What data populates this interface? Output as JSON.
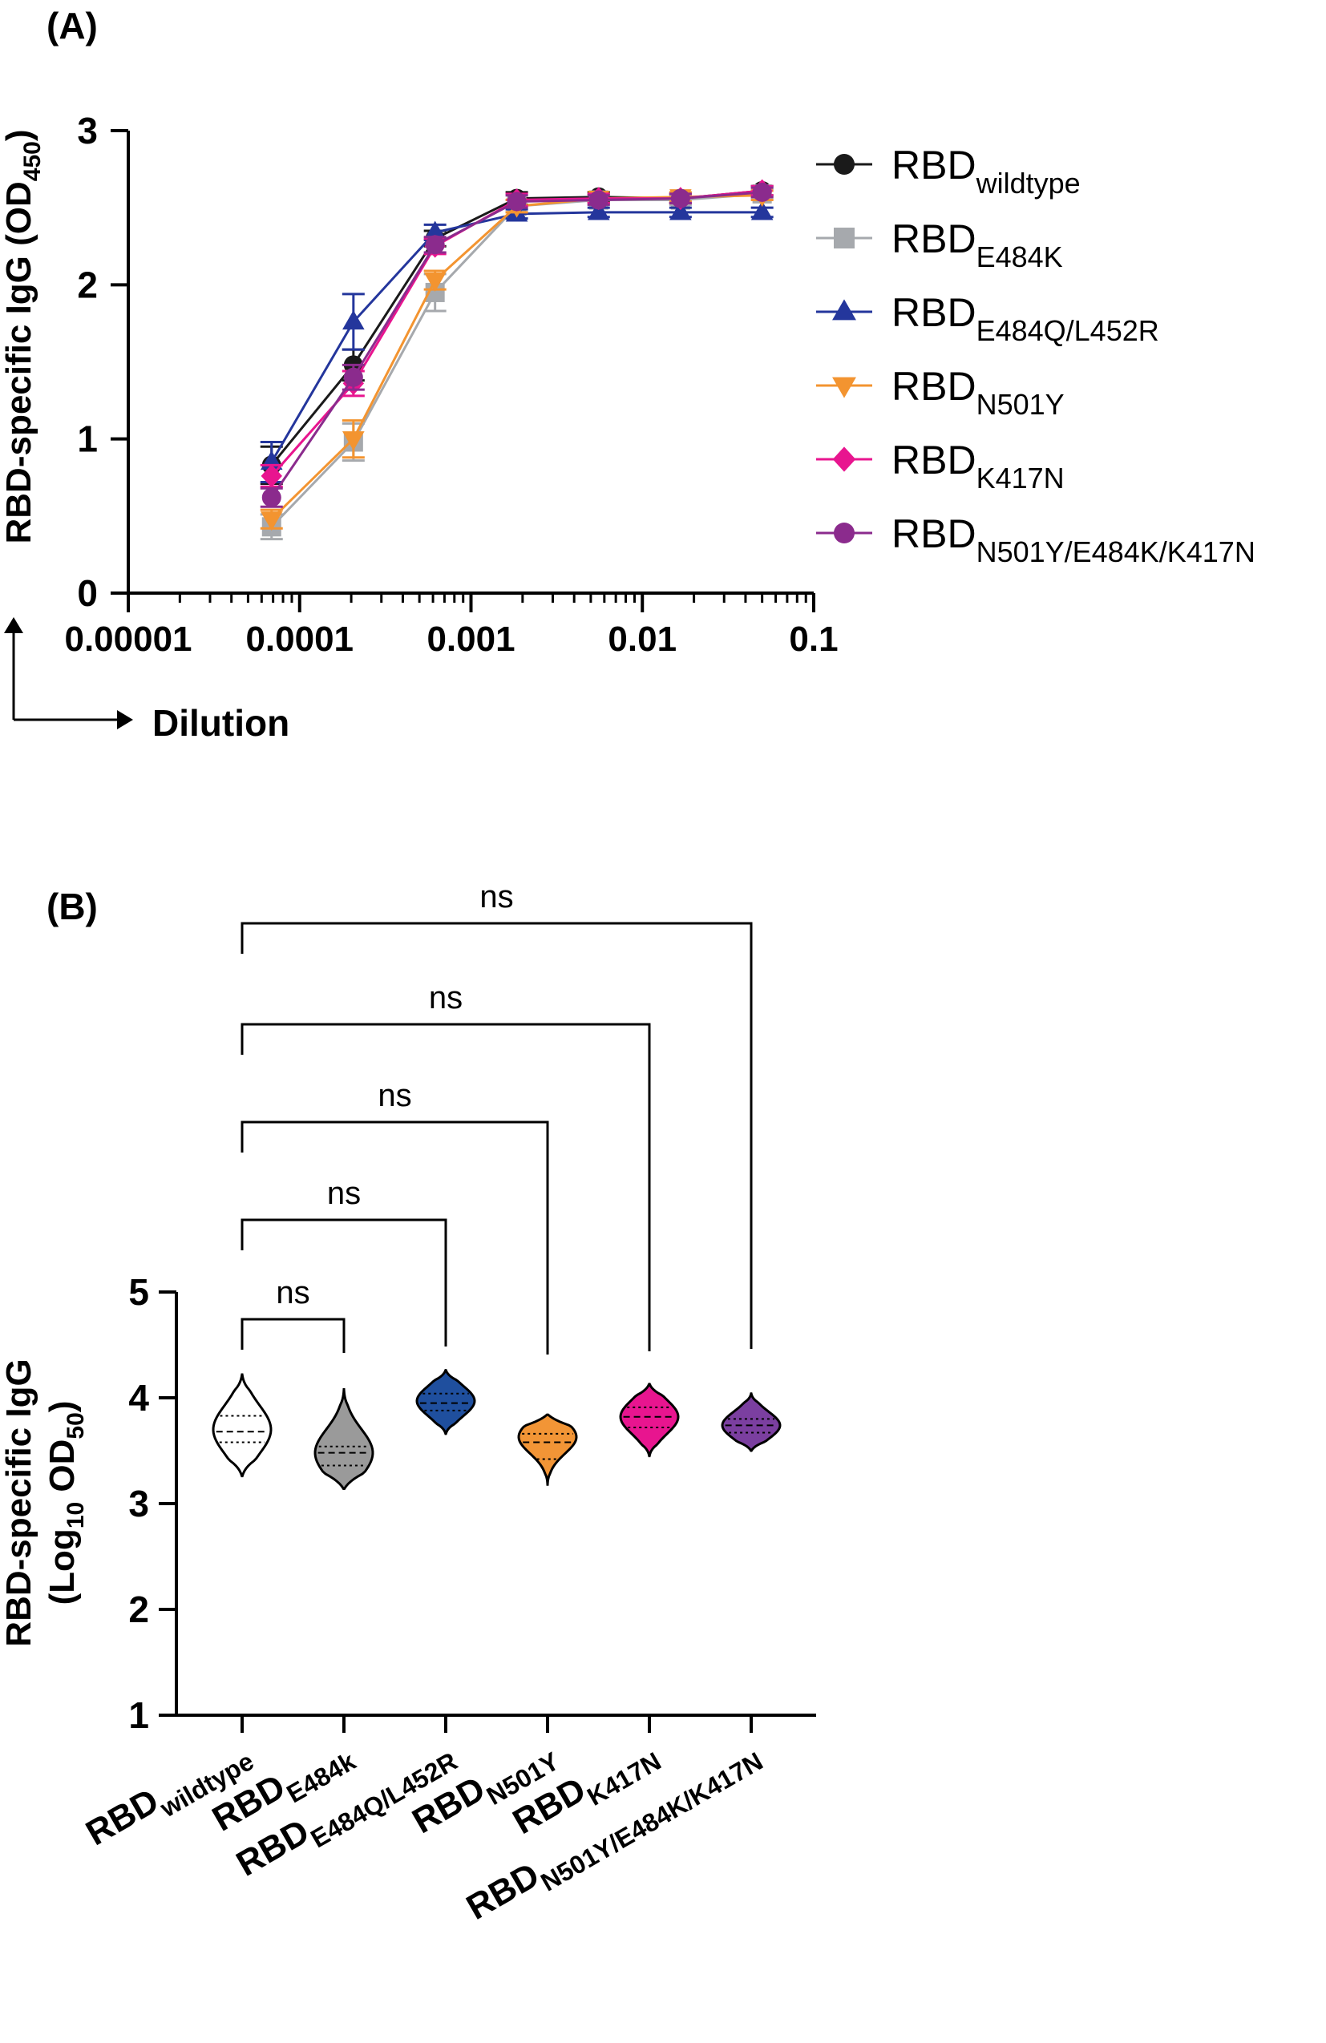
{
  "chart_data": [
    {
      "panel_label": "(A)",
      "type": "line",
      "xscale": "log",
      "xlabel": "Dilution",
      "ylabel": {
        "main": "RBD-specific IgG (OD",
        "sub": "450",
        "tail": ")"
      },
      "xlim": [
        1e-05,
        0.1
      ],
      "ylim": [
        0,
        3
      ],
      "x_ticks": [
        {
          "value": 1e-05,
          "label": "0.00001"
        },
        {
          "value": 0.0001,
          "label": "0.0001"
        },
        {
          "value": 0.001,
          "label": "0.001"
        },
        {
          "value": 0.01,
          "label": "0.01"
        },
        {
          "value": 0.1,
          "label": "0.1"
        }
      ],
      "y_ticks": [
        {
          "value": 0,
          "label": "0"
        },
        {
          "value": 1,
          "label": "1"
        },
        {
          "value": 2,
          "label": "2"
        },
        {
          "value": 3,
          "label": "3"
        }
      ],
      "x": [
        6.86e-05,
        0.000206,
        0.000617,
        0.00185,
        0.00556,
        0.0167,
        0.05
      ],
      "legend_position": "right",
      "series": [
        {
          "name": "RBD",
          "sub": "wildtype",
          "color": "#1a1a1a",
          "marker": "circle",
          "values": [
            0.83,
            1.48,
            2.3,
            2.56,
            2.57,
            2.56,
            2.61
          ],
          "errors": [
            0.12,
            0.1,
            0.05,
            0.04,
            0.03,
            0.03,
            0.03
          ]
        },
        {
          "name": "RBD",
          "sub": "E484K",
          "color": "#a6a9ad",
          "marker": "square",
          "values": [
            0.43,
            0.98,
            1.95,
            2.51,
            2.55,
            2.55,
            2.59
          ],
          "errors": [
            0.08,
            0.12,
            0.12,
            0.04,
            0.03,
            0.03,
            0.03
          ]
        },
        {
          "name": "RBD",
          "sub": "E484Q/L452R",
          "color": "#24369c",
          "marker": "triangle-up",
          "values": [
            0.85,
            1.76,
            2.34,
            2.46,
            2.47,
            2.47,
            2.47
          ],
          "errors": [
            0.13,
            0.18,
            0.05,
            0.03,
            0.03,
            0.03,
            0.03
          ]
        },
        {
          "name": "RBD",
          "sub": "N501Y",
          "color": "#f39430",
          "marker": "triangle-down",
          "values": [
            0.48,
            1.0,
            2.03,
            2.51,
            2.56,
            2.57,
            2.58
          ],
          "errors": [
            0.06,
            0.12,
            0.06,
            0.04,
            0.03,
            0.03,
            0.03
          ]
        },
        {
          "name": "RBD",
          "sub": "K417N",
          "color": "#e8158f",
          "marker": "diamond",
          "values": [
            0.76,
            1.36,
            2.25,
            2.55,
            2.56,
            2.56,
            2.61
          ],
          "errors": [
            0.07,
            0.08,
            0.05,
            0.04,
            0.03,
            0.03,
            0.03
          ]
        },
        {
          "name": "RBD",
          "sub": "N501Y/E484K/K417N",
          "color": "#8b2b8d",
          "marker": "circle",
          "values": [
            0.62,
            1.4,
            2.26,
            2.54,
            2.55,
            2.56,
            2.6
          ],
          "errors": [
            0.06,
            0.08,
            0.05,
            0.04,
            0.03,
            0.03,
            0.03
          ]
        }
      ]
    },
    {
      "panel_label": "(B)",
      "type": "violin",
      "ylabel": {
        "line1": "RBD-specific IgG",
        "line2_pre": "(Log",
        "line2_sub1": "10",
        "line2_mid": " OD",
        "line2_sub2": "50",
        "line2_post": ")"
      },
      "ylim": [
        1,
        5
      ],
      "y_ticks": [
        {
          "value": 1,
          "label": "1"
        },
        {
          "value": 2,
          "label": "2"
        },
        {
          "value": 3,
          "label": "3"
        },
        {
          "value": 4,
          "label": "4"
        },
        {
          "value": 5,
          "label": "5"
        }
      ],
      "categories": [
        {
          "name": "RBD",
          "sub": "wildtype"
        },
        {
          "name": "RBD",
          "sub": "E484k"
        },
        {
          "name": "RBD",
          "sub": "E484Q/L452R"
        },
        {
          "name": "RBD",
          "sub": "N501Y"
        },
        {
          "name": "RBD",
          "sub": "K417N"
        },
        {
          "name": "RBD",
          "sub": "N501Y/E484K/K417N"
        }
      ],
      "violins": [
        {
          "color": "#ffffff",
          "min": 3.26,
          "max": 4.22,
          "median": 3.68,
          "q1": 3.58,
          "q3": 3.83,
          "mode": 3.7
        },
        {
          "color": "#9a9a9a",
          "min": 3.14,
          "max": 4.08,
          "median": 3.48,
          "q1": 3.36,
          "q3": 3.54,
          "mode": 3.48
        },
        {
          "color": "#1f4f9e",
          "min": 3.66,
          "max": 4.26,
          "median": 3.95,
          "q1": 3.88,
          "q3": 4.04,
          "mode": 3.97
        },
        {
          "color": "#f29536",
          "min": 3.18,
          "max": 3.84,
          "median": 3.58,
          "q1": 3.42,
          "q3": 3.66,
          "mode": 3.63
        },
        {
          "color": "#e8158f",
          "min": 3.45,
          "max": 4.13,
          "median": 3.82,
          "q1": 3.72,
          "q3": 3.91,
          "mode": 3.82
        },
        {
          "color": "#7b3fa0",
          "min": 3.5,
          "max": 4.04,
          "median": 3.74,
          "q1": 3.67,
          "q3": 3.8,
          "mode": 3.74
        }
      ],
      "comparisons": [
        {
          "from": 0,
          "to": 1,
          "label": "ns"
        },
        {
          "from": 0,
          "to": 2,
          "label": "ns"
        },
        {
          "from": 0,
          "to": 3,
          "label": "ns"
        },
        {
          "from": 0,
          "to": 4,
          "label": "ns"
        },
        {
          "from": 0,
          "to": 5,
          "label": "ns"
        }
      ]
    }
  ]
}
